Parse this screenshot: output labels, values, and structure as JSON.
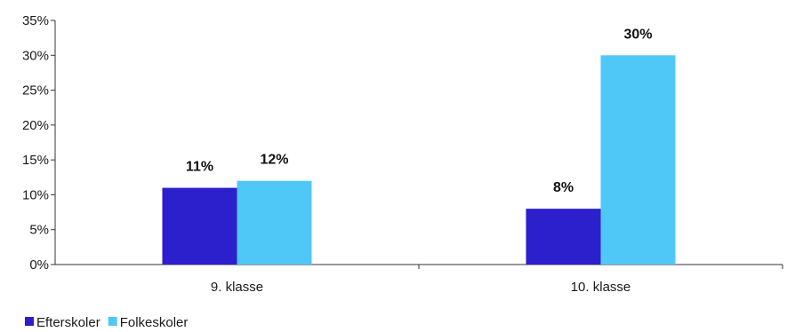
{
  "chart_data": {
    "type": "bar",
    "categories": [
      "9. klasse",
      "10. klasse"
    ],
    "series": [
      {
        "name": "Efterskoler",
        "values": [
          11,
          8
        ],
        "labels": [
          "11%",
          "8%"
        ],
        "color": "#2c1fcc"
      },
      {
        "name": "Folkeskoler",
        "values": [
          12,
          30
        ],
        "labels": [
          "12%",
          "30%"
        ],
        "color": "#4fc8f7"
      }
    ],
    "y_ticks": [
      0,
      5,
      10,
      15,
      20,
      25,
      30,
      35
    ],
    "y_tick_labels": [
      "0%",
      "5%",
      "10%",
      "15%",
      "20%",
      "25%",
      "30%",
      "35%"
    ],
    "ylim": [
      0,
      35
    ],
    "grid": false,
    "legend_position": "bottom-left"
  }
}
